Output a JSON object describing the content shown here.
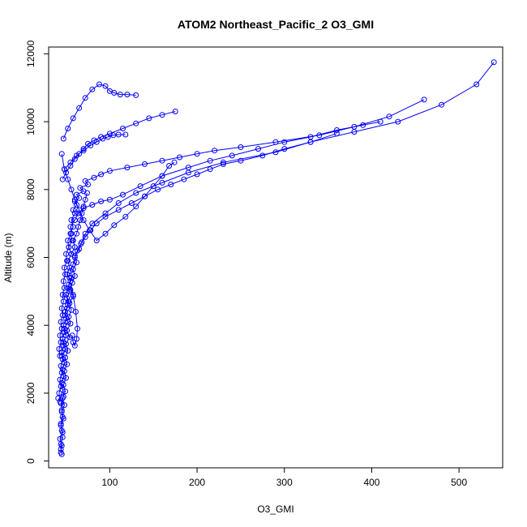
{
  "chart_data": {
    "type": "line",
    "title": "ATOM2 Northeast_Pacific_2 O3_GMI",
    "xlabel": "O3_GMI",
    "ylabel": "Altitude (m)",
    "xlim": [
      30,
      550
    ],
    "ylim": [
      -200,
      12200
    ],
    "x_ticks": [
      100,
      200,
      300,
      400,
      500
    ],
    "y_ticks": [
      0,
      2000,
      4000,
      6000,
      8000,
      10000,
      12000
    ],
    "grid": false,
    "color": "#0000ff",
    "marker": "open-circle",
    "series": [
      {
        "x": [
          45,
          44,
          44,
          46,
          45,
          44,
          46,
          45,
          44,
          47,
          46,
          45,
          47,
          46,
          48,
          45,
          49,
          47,
          50,
          48,
          52,
          49,
          51,
          53,
          50,
          52,
          55,
          51,
          54,
          52,
          56,
          53,
          57,
          55,
          58,
          56,
          60,
          58,
          62,
          60,
          65,
          62,
          70,
          66,
          75,
          72,
          82,
          90,
          100,
          120,
          140,
          160,
          180,
          200,
          220,
          250,
          290,
          340,
          380,
          420,
          460
        ],
        "y": [
          200,
          350,
          500,
          700,
          900,
          1100,
          1300,
          1500,
          1700,
          1900,
          2100,
          2300,
          2500,
          2700,
          2900,
          3100,
          3300,
          3500,
          3700,
          3900,
          4100,
          4300,
          4500,
          4700,
          4900,
          5100,
          5300,
          5500,
          5700,
          5900,
          6100,
          6300,
          6500,
          6700,
          6900,
          7100,
          7300,
          7400,
          7550,
          7650,
          7750,
          7850,
          7950,
          8050,
          8150,
          8250,
          8350,
          8450,
          8550,
          8650,
          8750,
          8850,
          8950,
          9050,
          9150,
          9250,
          9400,
          9600,
          9850,
          10150,
          10650
        ]
      },
      {
        "x": [
          44,
          45,
          43,
          46,
          44,
          47,
          45,
          48,
          46,
          49,
          47,
          50,
          48,
          51,
          49,
          52,
          50,
          54,
          51,
          55,
          53,
          56,
          54,
          58,
          55,
          57,
          60,
          58,
          62,
          60,
          65,
          68,
          72,
          80,
          95,
          110,
          130,
          160,
          190,
          230,
          290,
          330,
          380,
          430,
          480,
          520,
          540
        ],
        "y": [
          250,
          450,
          650,
          850,
          1050,
          1250,
          1450,
          1650,
          1850,
          2050,
          2250,
          2450,
          2650,
          2850,
          3050,
          3250,
          3450,
          3650,
          3850,
          4050,
          4250,
          4450,
          4650,
          4850,
          5050,
          5250,
          5450,
          5650,
          5850,
          6050,
          6250,
          6450,
          6700,
          7000,
          7300,
          7600,
          7900,
          8200,
          8500,
          8800,
          9100,
          9400,
          9700,
          10000,
          10500,
          11100,
          11750
        ]
      },
      {
        "x": [
          41,
          43,
          42,
          44,
          43,
          45,
          44,
          46,
          45,
          47,
          46,
          48,
          47,
          50,
          49,
          52,
          51,
          54,
          53,
          56,
          55,
          58,
          60,
          63,
          67,
          72,
          78,
          85,
          95,
          110,
          125,
          140,
          155,
          170,
          185,
          200,
          215,
          230,
          250,
          275,
          300,
          330,
          360
        ],
        "y": [
          1850,
          1750,
          2000,
          2200,
          2400,
          2600,
          2800,
          3000,
          3200,
          3400,
          3600,
          3800,
          4000,
          4200,
          4400,
          4600,
          4800,
          5000,
          5200,
          5400,
          5600,
          5800,
          6000,
          6200,
          6400,
          6600,
          6800,
          7000,
          7200,
          7400,
          7600,
          7800,
          8000,
          8150,
          8300,
          8450,
          8600,
          8750,
          8850,
          9000,
          9200,
          9400,
          9650
        ]
      },
      {
        "x": [
          43,
          42,
          44,
          43,
          45,
          44,
          46,
          45,
          47,
          46,
          48,
          47,
          49,
          48,
          51,
          50,
          53,
          52,
          56,
          55,
          60,
          64,
          70,
          80,
          90,
          100,
          115,
          135,
          160,
          190,
          215,
          240,
          270,
          300,
          330,
          360,
          390,
          410
        ],
        "y": [
          3100,
          3300,
          3500,
          3700,
          3900,
          4100,
          4300,
          4500,
          4700,
          4900,
          5100,
          5300,
          5500,
          5700,
          5900,
          6100,
          6300,
          6500,
          6700,
          6900,
          7100,
          7300,
          7450,
          7550,
          7650,
          7700,
          7850,
          8100,
          8400,
          8650,
          8850,
          9000,
          9200,
          9400,
          9550,
          9750,
          9900,
          10000
        ]
      },
      {
        "x": [
          45,
          48,
          52,
          56,
          60,
          65,
          70,
          77,
          85,
          95,
          105,
          118,
          130,
          140,
          150,
          160,
          168,
          174
        ],
        "y": [
          9050,
          8600,
          8300,
          8000,
          7700,
          7400,
          7100,
          6800,
          6500,
          6700,
          6950,
          7200,
          7500,
          7800,
          8100,
          8400,
          8700,
          8800
        ]
      },
      {
        "x": [
          46,
          50,
          55,
          60,
          65,
          70,
          75,
          82,
          90,
          100,
          115,
          130,
          145,
          160,
          175
        ],
        "y": [
          8300,
          8500,
          8700,
          8900,
          9050,
          9200,
          9350,
          9450,
          9550,
          9650,
          9800,
          9950,
          10100,
          10200,
          10300
        ]
      },
      {
        "x": [
          47,
          52,
          58,
          65,
          72,
          80,
          88,
          95,
          100,
          105,
          112,
          120,
          130
        ],
        "y": [
          9500,
          9800,
          10100,
          10400,
          10700,
          10950,
          11100,
          11050,
          10900,
          10850,
          10800,
          10800,
          10780
        ]
      },
      {
        "x": [
          48,
          55,
          62,
          70,
          78,
          85,
          92,
          98,
          104,
          110,
          118
        ],
        "y": [
          8600,
          8800,
          9000,
          9150,
          9300,
          9400,
          9500,
          9550,
          9600,
          9620,
          9620
        ]
      },
      {
        "x": [
          56,
          60,
          58,
          62,
          64,
          66,
          68,
          70,
          72,
          74
        ],
        "y": [
          6100,
          6300,
          6500,
          6700,
          6900,
          7100,
          7300,
          7500,
          7700,
          7900
        ]
      },
      {
        "x": [
          54,
          58,
          61,
          63,
          62,
          60,
          58,
          57
        ],
        "y": [
          5400,
          4900,
          4400,
          3900,
          3600,
          3400,
          3500,
          3700
        ]
      }
    ]
  }
}
